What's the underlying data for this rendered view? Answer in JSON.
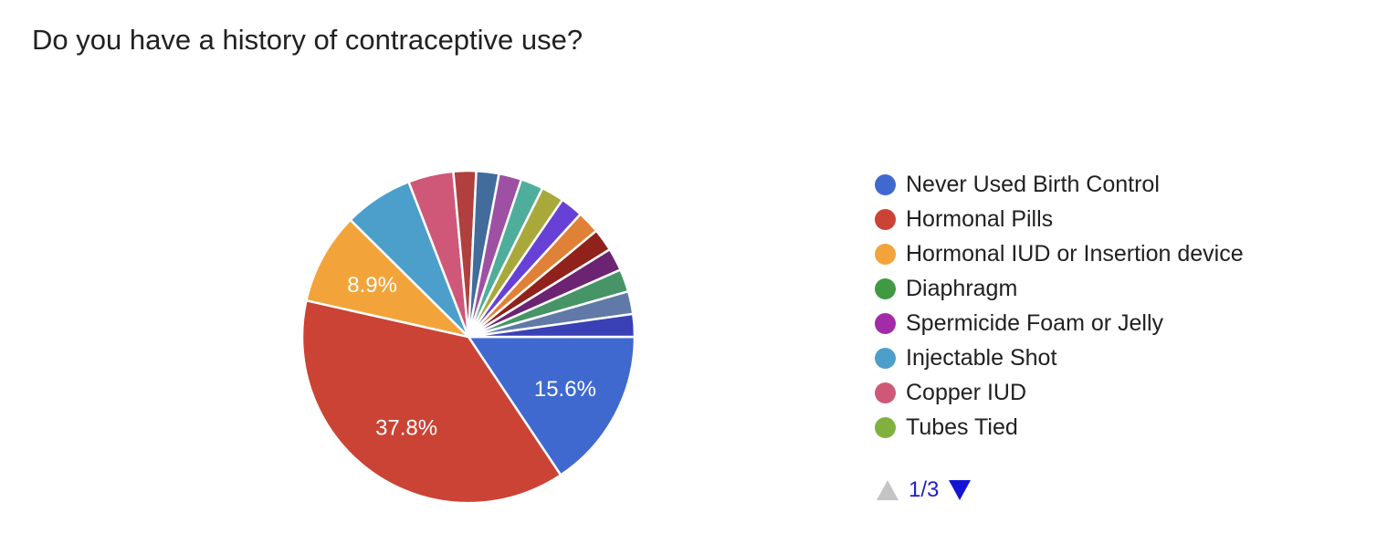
{
  "question": {
    "title": "Do you have a history of contraceptive use?"
  },
  "chart_data": {
    "type": "pie",
    "title": "Do you have a history of contraceptive use?",
    "start_angle_deg": 0,
    "direction": "clockwise",
    "pct_label_color": "#FFFFFF",
    "slices": [
      {
        "name": "Never Used Birth Control",
        "pct": 15.6,
        "color": "#4069D0",
        "pct_label": "15.6%"
      },
      {
        "name": "Hormonal Pills",
        "pct": 37.8,
        "color": "#CB4335",
        "pct_label": "37.8%"
      },
      {
        "name": "Hormonal IUD or Insertion device",
        "pct": 8.9,
        "color": "#F2A43A",
        "pct_label": "8.9%"
      },
      {
        "name": "Injectable Shot",
        "pct": 6.7,
        "color": "#4C9FCB",
        "pct_label": ""
      },
      {
        "name": "Copper IUD",
        "pct": 4.4,
        "color": "#CF5878",
        "pct_label": ""
      },
      {
        "name": "",
        "pct": 2.2,
        "color": "#B03F3D",
        "pct_label": ""
      },
      {
        "name": "",
        "pct": 2.2,
        "color": "#416C9B",
        "pct_label": ""
      },
      {
        "name": "",
        "pct": 2.2,
        "color": "#9E51A3",
        "pct_label": ""
      },
      {
        "name": "",
        "pct": 2.2,
        "color": "#4FAE9B",
        "pct_label": ""
      },
      {
        "name": "",
        "pct": 2.2,
        "color": "#A9A93B",
        "pct_label": ""
      },
      {
        "name": "",
        "pct": 2.2,
        "color": "#6741D6",
        "pct_label": ""
      },
      {
        "name": "",
        "pct": 2.2,
        "color": "#DF8136",
        "pct_label": ""
      },
      {
        "name": "",
        "pct": 2.2,
        "color": "#90211B",
        "pct_label": ""
      },
      {
        "name": "",
        "pct": 2.2,
        "color": "#6C2472",
        "pct_label": ""
      },
      {
        "name": "",
        "pct": 2.2,
        "color": "#479467",
        "pct_label": ""
      },
      {
        "name": "",
        "pct": 2.2,
        "color": "#6079A8",
        "pct_label": ""
      },
      {
        "name": "",
        "pct": 2.2,
        "color": "#3A40B5",
        "pct_label": ""
      }
    ],
    "legend_position": "right",
    "legend": [
      {
        "label": "Never Used Birth Control",
        "color": "#4069D0"
      },
      {
        "label": "Hormonal Pills",
        "color": "#CB4335"
      },
      {
        "label": "Hormonal IUD or Insertion device",
        "color": "#F2A43A"
      },
      {
        "label": "Diaphragm",
        "color": "#3F9A42"
      },
      {
        "label": "Spermicide Foam or Jelly",
        "color": "#A32BA8"
      },
      {
        "label": "Injectable Shot",
        "color": "#4C9FCB"
      },
      {
        "label": "Copper IUD",
        "color": "#CF5878"
      },
      {
        "label": "Tubes Tied",
        "color": "#80B13E"
      }
    ]
  },
  "pager": {
    "current": "1/3",
    "up_icon_color": "#C4C4C4",
    "down_icon_color": "#1414D6",
    "text_color": "#2020CE"
  }
}
